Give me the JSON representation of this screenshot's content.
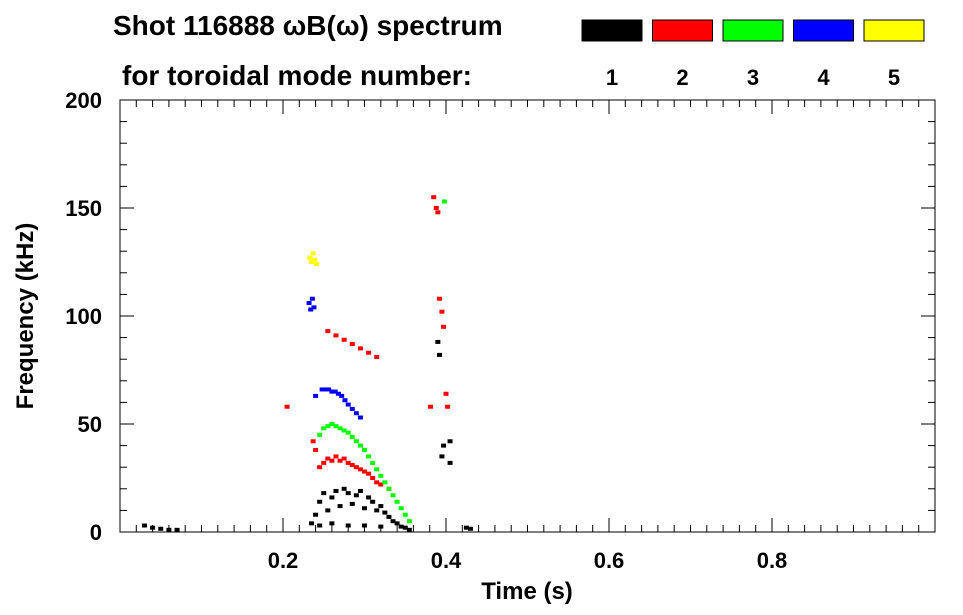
{
  "header": {
    "title_line1": "Shot 116888 ωB(ω) spectrum",
    "title_line2": "for toroidal mode number:"
  },
  "legend": [
    {
      "label": "1",
      "color": "#000000"
    },
    {
      "label": "2",
      "color": "#ff0000"
    },
    {
      "label": "3",
      "color": "#00ff00"
    },
    {
      "label": "4",
      "color": "#0000ff"
    },
    {
      "label": "5",
      "color": "#ffff00"
    }
  ],
  "chart_data": {
    "type": "scatter",
    "title": "Shot 116888 ωB(ω) spectrum",
    "xlabel": "Time (s)",
    "ylabel": "Frequency (kHz)",
    "xlim": [
      0.0,
      1.0
    ],
    "ylim": [
      0,
      200
    ],
    "xticks": [
      0.2,
      0.4,
      0.6,
      0.8
    ],
    "yticks": [
      0,
      50,
      100,
      150,
      200
    ],
    "grid": false,
    "legend_position": "top",
    "series": [
      {
        "name": "1",
        "color": "#000000",
        "points": [
          [
            0.03,
            3
          ],
          [
            0.04,
            2
          ],
          [
            0.05,
            1.5
          ],
          [
            0.06,
            1
          ],
          [
            0.07,
            1
          ],
          [
            0.235,
            4
          ],
          [
            0.24,
            8
          ],
          [
            0.245,
            14
          ],
          [
            0.25,
            18
          ],
          [
            0.255,
            10
          ],
          [
            0.26,
            16
          ],
          [
            0.265,
            19
          ],
          [
            0.27,
            12
          ],
          [
            0.275,
            20
          ],
          [
            0.28,
            18
          ],
          [
            0.285,
            13
          ],
          [
            0.29,
            17
          ],
          [
            0.295,
            19
          ],
          [
            0.3,
            11
          ],
          [
            0.305,
            16
          ],
          [
            0.31,
            14
          ],
          [
            0.315,
            10
          ],
          [
            0.32,
            12
          ],
          [
            0.325,
            9
          ],
          [
            0.33,
            7
          ],
          [
            0.335,
            5
          ],
          [
            0.34,
            4
          ],
          [
            0.345,
            2.5
          ],
          [
            0.35,
            2
          ],
          [
            0.355,
            1
          ],
          [
            0.245,
            3
          ],
          [
            0.26,
            4
          ],
          [
            0.28,
            3
          ],
          [
            0.3,
            3
          ],
          [
            0.32,
            2.5
          ],
          [
            0.39,
            88
          ],
          [
            0.392,
            82
          ],
          [
            0.395,
            35
          ],
          [
            0.397,
            40
          ],
          [
            0.405,
            42
          ],
          [
            0.405,
            32
          ],
          [
            0.425,
            2
          ],
          [
            0.43,
            1.5
          ]
        ]
      },
      {
        "name": "2",
        "color": "#ff0000",
        "points": [
          [
            0.237,
            42
          ],
          [
            0.24,
            38
          ],
          [
            0.245,
            30
          ],
          [
            0.25,
            32
          ],
          [
            0.255,
            34
          ],
          [
            0.26,
            33
          ],
          [
            0.265,
            35
          ],
          [
            0.27,
            33
          ],
          [
            0.275,
            34
          ],
          [
            0.28,
            32
          ],
          [
            0.285,
            31
          ],
          [
            0.29,
            30
          ],
          [
            0.295,
            29
          ],
          [
            0.3,
            28
          ],
          [
            0.305,
            27
          ],
          [
            0.31,
            25
          ],
          [
            0.315,
            23
          ],
          [
            0.32,
            22
          ],
          [
            0.33,
            20
          ],
          [
            0.255,
            93
          ],
          [
            0.265,
            91
          ],
          [
            0.275,
            89
          ],
          [
            0.285,
            87
          ],
          [
            0.295,
            85
          ],
          [
            0.305,
            83
          ],
          [
            0.315,
            81
          ],
          [
            0.205,
            58
          ],
          [
            0.381,
            58
          ],
          [
            0.385,
            155
          ],
          [
            0.388,
            150
          ],
          [
            0.39,
            148
          ],
          [
            0.392,
            108
          ],
          [
            0.395,
            102
          ],
          [
            0.397,
            95
          ],
          [
            0.4,
            64
          ],
          [
            0.402,
            58
          ]
        ]
      },
      {
        "name": "3",
        "color": "#00ff00",
        "points": [
          [
            0.245,
            45
          ],
          [
            0.25,
            48
          ],
          [
            0.255,
            49
          ],
          [
            0.26,
            50
          ],
          [
            0.265,
            49
          ],
          [
            0.27,
            48
          ],
          [
            0.275,
            47
          ],
          [
            0.28,
            46
          ],
          [
            0.285,
            44
          ],
          [
            0.29,
            42
          ],
          [
            0.295,
            40
          ],
          [
            0.3,
            38
          ],
          [
            0.305,
            35
          ],
          [
            0.31,
            32
          ],
          [
            0.315,
            29
          ],
          [
            0.32,
            26
          ],
          [
            0.325,
            23
          ],
          [
            0.33,
            20
          ],
          [
            0.335,
            17
          ],
          [
            0.34,
            14
          ],
          [
            0.345,
            11
          ],
          [
            0.35,
            8
          ],
          [
            0.355,
            5
          ],
          [
            0.398,
            153
          ]
        ]
      },
      {
        "name": "4",
        "color": "#0000ff",
        "points": [
          [
            0.232,
            106
          ],
          [
            0.234,
            103
          ],
          [
            0.236,
            108
          ],
          [
            0.238,
            104
          ],
          [
            0.24,
            63
          ],
          [
            0.248,
            66
          ],
          [
            0.252,
            66
          ],
          [
            0.256,
            66
          ],
          [
            0.26,
            65
          ],
          [
            0.264,
            65
          ],
          [
            0.268,
            64
          ],
          [
            0.272,
            63
          ],
          [
            0.276,
            61
          ],
          [
            0.28,
            59
          ],
          [
            0.285,
            57
          ],
          [
            0.29,
            55
          ],
          [
            0.295,
            53
          ]
        ]
      },
      {
        "name": "5",
        "color": "#ffff00",
        "points": [
          [
            0.233,
            127
          ],
          [
            0.235,
            125
          ],
          [
            0.237,
            129
          ],
          [
            0.239,
            126
          ],
          [
            0.241,
            124
          ]
        ]
      }
    ]
  }
}
